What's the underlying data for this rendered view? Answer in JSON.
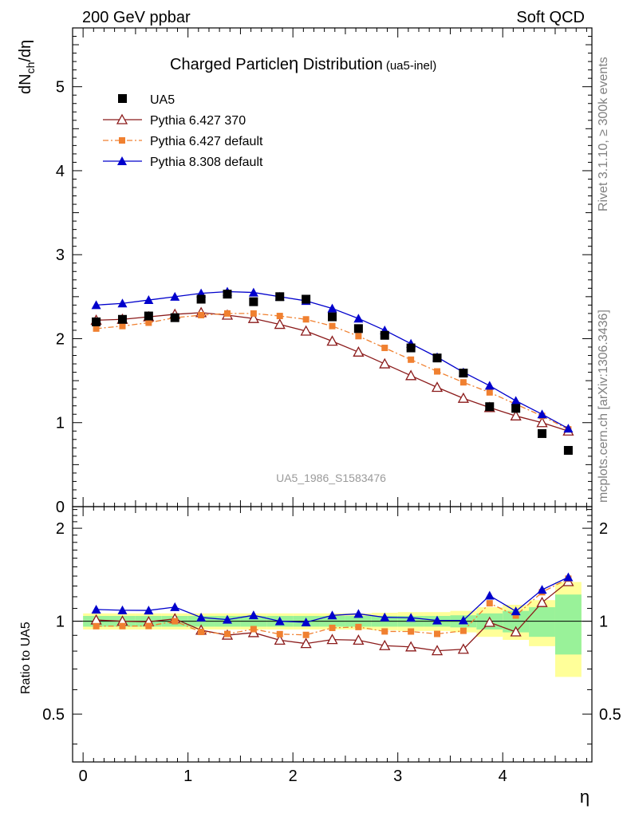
{
  "header": {
    "left": "200 GeV ppbar",
    "right": "Soft QCD"
  },
  "sidebar": {
    "rivet": "Rivet 3.1.10, ≥ 300k events",
    "mcplots": "mcplots.cern.ch [arXiv:1306.3436]"
  },
  "chart_data": {
    "type": "scatter",
    "title": "Charged Particle",
    "title_symbol": "η",
    "title_rest": " Distribution",
    "title_tag": "(ua5-inel)",
    "watermark": "UA5_1986_S1583476",
    "ylabel_top": {
      "main": "dN",
      "sub": "ch",
      "rest": "/dη"
    },
    "ylabel_bottom": "Ratio to UA5",
    "xlabel": "η",
    "xlim": [
      -0.1,
      4.85
    ],
    "ylim_top": [
      0,
      5.7
    ],
    "ylim_ratio": [
      0.35,
      2.35
    ],
    "x_ticks": [
      "0",
      "1",
      "2",
      "3",
      "4"
    ],
    "y_ticks_top": [
      "0",
      "1",
      "2",
      "3",
      "4",
      "5"
    ],
    "y_ticks_ratio": [
      "0.5",
      "1",
      "2"
    ],
    "x": [
      0.125,
      0.375,
      0.625,
      0.875,
      1.125,
      1.375,
      1.625,
      1.875,
      2.125,
      2.375,
      2.625,
      2.875,
      3.125,
      3.375,
      3.625,
      3.875,
      4.125,
      4.375,
      4.625
    ],
    "band_edges": [
      0,
      0.25,
      0.5,
      0.75,
      1.0,
      1.25,
      1.5,
      1.75,
      2.0,
      2.25,
      2.5,
      2.75,
      3.0,
      3.25,
      3.5,
      3.75,
      4.0,
      4.25,
      4.5,
      4.75
    ],
    "ua5": {
      "name": "UA5",
      "values": [
        2.2,
        2.23,
        2.27,
        2.25,
        2.47,
        2.53,
        2.44,
        2.5,
        2.47,
        2.26,
        2.12,
        2.04,
        1.89,
        1.77,
        1.59,
        1.19,
        1.17,
        0.87,
        0.67
      ],
      "band_green": [
        0.04,
        0.04,
        0.04,
        0.04,
        0.04,
        0.04,
        0.04,
        0.04,
        0.04,
        0.04,
        0.04,
        0.04,
        0.04,
        0.04,
        0.045,
        0.06,
        0.08,
        0.11,
        0.22
      ],
      "band_yellow": [
        0.06,
        0.06,
        0.06,
        0.06,
        0.06,
        0.06,
        0.06,
        0.06,
        0.06,
        0.06,
        0.06,
        0.065,
        0.07,
        0.07,
        0.08,
        0.11,
        0.13,
        0.17,
        0.34
      ]
    },
    "series": [
      {
        "name": "Pythia 6.427 370",
        "color": "#8b1a1a",
        "marker": "open-triangle",
        "dash": "",
        "values": [
          2.22,
          2.23,
          2.26,
          2.29,
          2.31,
          2.28,
          2.24,
          2.17,
          2.09,
          1.97,
          1.84,
          1.7,
          1.56,
          1.42,
          1.29,
          1.18,
          1.08,
          1.0,
          0.9
        ]
      },
      {
        "name": "Pythia 6.427 default",
        "color": "#f08030",
        "marker": "square",
        "dash": "7,3,2,3",
        "values": [
          2.12,
          2.15,
          2.19,
          2.25,
          2.28,
          2.3,
          2.3,
          2.27,
          2.23,
          2.15,
          2.03,
          1.89,
          1.75,
          1.61,
          1.48,
          1.36,
          1.22,
          1.08,
          0.92
        ]
      },
      {
        "name": "Pythia 8.308 default",
        "color": "#0000cc",
        "marker": "filled-triangle",
        "dash": "",
        "values": [
          2.4,
          2.42,
          2.46,
          2.5,
          2.54,
          2.56,
          2.55,
          2.5,
          2.45,
          2.36,
          2.24,
          2.1,
          1.94,
          1.78,
          1.6,
          1.44,
          1.26,
          1.1,
          0.93
        ]
      }
    ]
  }
}
